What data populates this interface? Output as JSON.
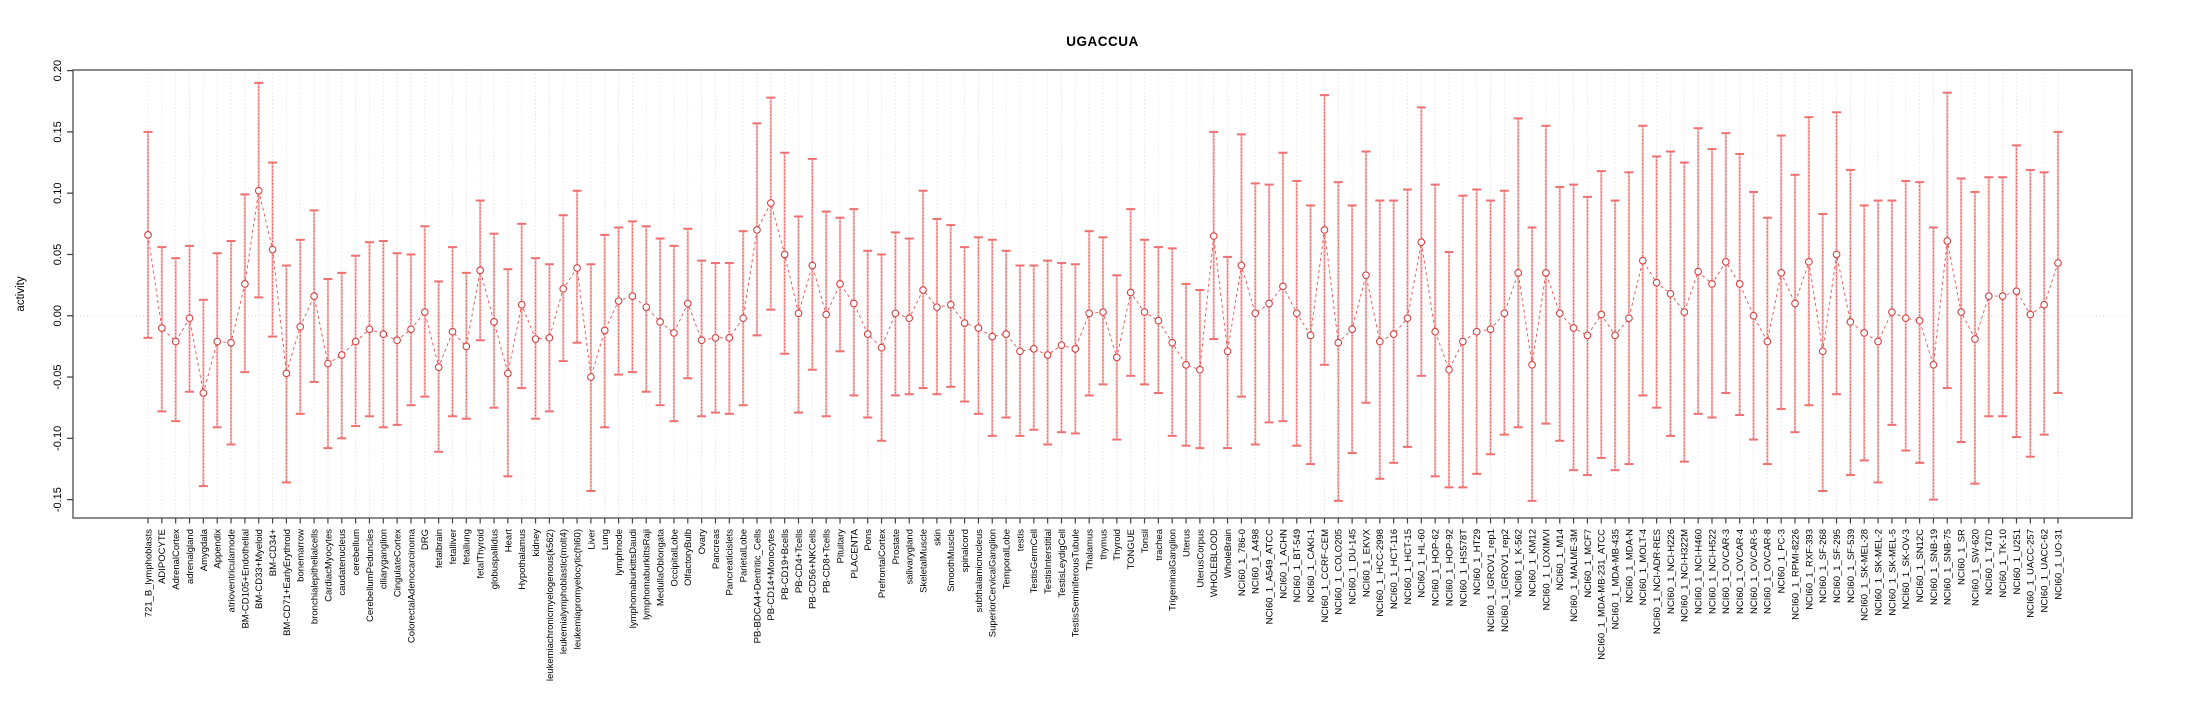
{
  "chart_data": {
    "type": "scatter",
    "subtype": "errorbar-ci-plot",
    "title": "UGACCUA",
    "xlabel": "",
    "ylabel": "activity",
    "ylim": [
      -0.165,
      0.2005
    ],
    "yticks": [
      0.2,
      0.15,
      0.1,
      0.05,
      0.0,
      -0.05,
      -0.1,
      -0.15
    ],
    "grid": "vertical dashed gridline per category; dotted horizontal line at y=0",
    "legend_position": "none",
    "marker": "open-circle",
    "line_style": "dashed connector between means",
    "colors": {
      "point_stroke": "#d94040",
      "bar_pale": "#f4a0a0",
      "bar_dash": "#dd4b4b",
      "cap": "#ee7070",
      "connector": "#e85151",
      "grid": "#e3e3e3",
      "zero_line": "#d8d8d8",
      "frame": "#6e6e6e",
      "tick": "#444444",
      "text": "#000000"
    },
    "categories": [
      "721_B_lymphoblasts",
      "ADIPOCYTE",
      "AdrenalCortex",
      "adrenalgland",
      "Amygdala",
      "Appendix",
      "atrioventricularnode",
      "BM-CD105+Endothelial",
      "BM-CD33+Myeloid",
      "BM-CD34+",
      "BM-CD71+EarlyErythroid",
      "bonemarrow",
      "bronchialepithelialcells",
      "CardiacMyocytes",
      "caudatenucleus",
      "cerebellum",
      "CerebellumPeduncles",
      "ciliaryganglion",
      "CingulateCortex",
      "ColorectalAdenocarcinoma",
      "DRG",
      "fetalbrain",
      "fetalliver",
      "fetallung",
      "fetalThyroid",
      "globuspallidus",
      "Heart",
      "Hypothalamus",
      "kidney",
      "leukemiachronicmyelogenous(k562)",
      "leukemialymphoblastic(molt4)",
      "leukemiapromyelocytic(hl60)",
      "Liver",
      "Lung",
      "lymphnode",
      "lymphomaburkittsDaudi",
      "lymphomaburkittsRaji",
      "MedullaOblongata",
      "OccipitalLobe",
      "OlfactoryBulb",
      "Ovary",
      "Pancreas",
      "Pancreaticislets",
      "ParietalLobe",
      "PB-BDCA4+Dentritic_Cells",
      "PB-CD14+Monocytes",
      "PB-CD19+Bcells",
      "PB-CD4+Tcells",
      "PB-CD56+NKCells",
      "PB-CD8+Tcells",
      "Pituitary",
      "PLACENTA",
      "Pons",
      "PrefrontalCortex",
      "Prostate",
      "salivarygland",
      "SkeletalMuscle",
      "skin",
      "SmoothMuscle",
      "spinalcord",
      "subthalamicnucleus",
      "SuperiorCervicalGanglion",
      "TemporalLobe",
      "testis",
      "TestisGermCell",
      "TestisInterstitial",
      "TestisLeydigCell",
      "TestisSeminiferousTubule",
      "Thalamus",
      "thymus",
      "Thyroid",
      "TONGUE",
      "Tonsil",
      "trachea",
      "TrigeminalGanglion",
      "Uterus",
      "UterusCorpus",
      "WHOLEBLOOD",
      "WholeBrain",
      "NCI60_1_786-0",
      "NCI60_1_A498",
      "NCI60_1_A549_ATCC",
      "NCI60_1_ACHN",
      "NCI60_1_BT-549",
      "NCI60_1_CAKI-1",
      "NCI60_1_CCRF-CEM",
      "NCI60_1_COLO205",
      "NCI60_1_DU-145",
      "NCI60_1_EKVX",
      "NCI60_1_HCC-2998",
      "NCI60_1_HCT-116",
      "NCI60_1_HCT-15",
      "NCI60_1_HL-60",
      "NCI60_1_HOP-62",
      "NCI60_1_HOP-92",
      "NCI60_1_HS578T",
      "NCI60_1_HT29",
      "NCI60_1_IGROV1_rep1",
      "NCI60_1_IGROV1_rep2",
      "NCI60_1_K-562",
      "NCI60_1_KM12",
      "NCI60_1_LOXIMVI",
      "NCI60_1_M14",
      "NCI60_1_MALME-3M",
      "NCI60_1_MCF7",
      "NCI60_1_MDA-MB-231_ATCC",
      "NCI60_1_MDA-MB-435",
      "NCI60_1_MDA-N",
      "NCI60_1_MOLT-4",
      "NCI60_1_NCI-ADR-RES",
      "NCI60_1_NCI-H226",
      "NCI60_1_NCI-H322M",
      "NCI60_1_NCI-H460",
      "NCI60_1_NCI-H522",
      "NCI60_1_OVCAR-3",
      "NCI60_1_OVCAR-4",
      "NCI60_1_OVCAR-5",
      "NCI60_1_OVCAR-8",
      "NCI60_1_PC-3",
      "NCI60_1_RPMI-8226",
      "NCI60_1_RXF-393",
      "NCI60_1_SF-268",
      "NCI60_1_SF-295",
      "NCI60_1_SF-539",
      "NCI60_1_SK-MEL-28",
      "NCI60_1_SK-MEL-2",
      "NCI60_1_SK-MEL-5",
      "NCI60_1_SK-OV-3",
      "NCI60_1_SN12C",
      "NCI60_1_SNB-19",
      "NCI60_1_SNB-75",
      "NCI60_1_SR",
      "NCI60_1_SW-620",
      "NCI60_1_T47D",
      "NCI60_1_TK-10",
      "NCI60_1_U251",
      "NCI60_1_UACC-257",
      "NCI60_1_UACC-62",
      "NCI60_1_UO-31"
    ],
    "series": [
      {
        "name": "activity",
        "means": [
          0.066,
          -0.01,
          -0.021,
          -0.002,
          -0.063,
          -0.021,
          -0.022,
          0.026,
          0.102,
          0.054,
          -0.047,
          -0.009,
          0.016,
          -0.039,
          -0.032,
          -0.021,
          -0.011,
          -0.015,
          -0.02,
          -0.011,
          0.003,
          -0.042,
          -0.013,
          -0.025,
          0.037,
          -0.005,
          -0.047,
          0.009,
          -0.019,
          -0.018,
          0.022,
          0.039,
          -0.05,
          -0.012,
          0.012,
          0.016,
          0.007,
          -0.005,
          -0.014,
          0.01,
          -0.02,
          -0.018,
          -0.018,
          -0.002,
          0.07,
          0.092,
          0.05,
          0.002,
          0.041,
          0.001,
          0.026,
          0.01,
          -0.015,
          -0.026,
          0.002,
          -0.002,
          0.021,
          0.007,
          0.009,
          -0.006,
          -0.01,
          -0.017,
          -0.015,
          -0.029,
          -0.027,
          -0.032,
          -0.024,
          -0.027,
          0.002,
          0.003,
          -0.034,
          0.019,
          0.003,
          -0.004,
          -0.022,
          -0.04,
          -0.044,
          0.065,
          -0.029,
          0.041,
          0.002,
          0.01,
          0.024,
          0.002,
          -0.016,
          0.07,
          -0.022,
          -0.011,
          0.033,
          -0.021,
          -0.015,
          -0.002,
          0.06,
          -0.013,
          -0.044,
          -0.021,
          -0.013,
          -0.011,
          0.002,
          0.035,
          -0.04,
          0.035,
          0.002,
          -0.01,
          -0.016,
          0.001,
          -0.016,
          -0.002,
          0.045,
          0.027,
          0.018,
          0.003,
          0.036,
          0.026,
          0.044,
          0.026,
          0.0,
          -0.021,
          0.035,
          0.01,
          0.044,
          -0.029,
          0.05,
          -0.005,
          -0.014,
          -0.021,
          0.003,
          -0.002,
          -0.004,
          -0.04,
          0.061,
          0.003,
          -0.019,
          0.016,
          0.016,
          0.02,
          0.001,
          0.009,
          0.043
        ],
        "lower": [
          -0.018,
          -0.078,
          -0.086,
          -0.062,
          -0.139,
          -0.091,
          -0.105,
          -0.046,
          0.015,
          -0.017,
          -0.136,
          -0.08,
          -0.054,
          -0.108,
          -0.1,
          -0.09,
          -0.082,
          -0.091,
          -0.089,
          -0.073,
          -0.066,
          -0.111,
          -0.082,
          -0.084,
          -0.02,
          -0.075,
          -0.131,
          -0.059,
          -0.084,
          -0.078,
          -0.037,
          -0.022,
          -0.143,
          -0.091,
          -0.048,
          -0.046,
          -0.062,
          -0.073,
          -0.086,
          -0.051,
          -0.082,
          -0.079,
          -0.08,
          -0.073,
          -0.016,
          0.005,
          -0.031,
          -0.079,
          -0.044,
          -0.082,
          -0.029,
          -0.065,
          -0.083,
          -0.102,
          -0.065,
          -0.064,
          -0.059,
          -0.064,
          -0.058,
          -0.07,
          -0.08,
          -0.098,
          -0.083,
          -0.098,
          -0.093,
          -0.105,
          -0.095,
          -0.096,
          -0.065,
          -0.056,
          -0.101,
          -0.049,
          -0.056,
          -0.063,
          -0.098,
          -0.106,
          -0.108,
          -0.019,
          -0.108,
          -0.066,
          -0.105,
          -0.087,
          -0.086,
          -0.106,
          -0.121,
          -0.04,
          -0.151,
          -0.112,
          -0.071,
          -0.133,
          -0.12,
          -0.107,
          -0.049,
          -0.131,
          -0.14,
          -0.14,
          -0.129,
          -0.113,
          -0.097,
          -0.091,
          -0.151,
          -0.088,
          -0.102,
          -0.126,
          -0.13,
          -0.116,
          -0.126,
          -0.121,
          -0.065,
          -0.075,
          -0.098,
          -0.119,
          -0.08,
          -0.083,
          -0.063,
          -0.081,
          -0.101,
          -0.121,
          -0.076,
          -0.095,
          -0.073,
          -0.143,
          -0.064,
          -0.13,
          -0.118,
          -0.136,
          -0.089,
          -0.11,
          -0.12,
          -0.15,
          -0.059,
          -0.103,
          -0.137,
          -0.082,
          -0.082,
          -0.099,
          -0.115,
          -0.097,
          -0.063
        ],
        "upper": [
          0.15,
          0.056,
          0.047,
          0.057,
          0.013,
          0.051,
          0.061,
          0.099,
          0.19,
          0.125,
          0.041,
          0.062,
          0.086,
          0.03,
          0.035,
          0.049,
          0.06,
          0.061,
          0.051,
          0.05,
          0.073,
          0.028,
          0.056,
          0.035,
          0.094,
          0.067,
          0.038,
          0.075,
          0.047,
          0.042,
          0.082,
          0.102,
          0.042,
          0.066,
          0.072,
          0.077,
          0.073,
          0.063,
          0.057,
          0.071,
          0.045,
          0.043,
          0.043,
          0.069,
          0.157,
          0.178,
          0.133,
          0.081,
          0.128,
          0.085,
          0.08,
          0.087,
          0.053,
          0.05,
          0.068,
          0.063,
          0.102,
          0.079,
          0.074,
          0.056,
          0.064,
          0.062,
          0.053,
          0.041,
          0.041,
          0.045,
          0.043,
          0.042,
          0.069,
          0.064,
          0.033,
          0.087,
          0.062,
          0.056,
          0.055,
          0.026,
          0.021,
          0.15,
          0.048,
          0.148,
          0.108,
          0.107,
          0.133,
          0.11,
          0.09,
          0.18,
          0.109,
          0.09,
          0.134,
          0.094,
          0.094,
          0.103,
          0.17,
          0.107,
          0.052,
          0.098,
          0.103,
          0.094,
          0.102,
          0.161,
          0.072,
          0.155,
          0.105,
          0.107,
          0.097,
          0.118,
          0.094,
          0.117,
          0.155,
          0.13,
          0.134,
          0.125,
          0.153,
          0.136,
          0.149,
          0.132,
          0.101,
          0.08,
          0.147,
          0.115,
          0.162,
          0.083,
          0.166,
          0.119,
          0.09,
          0.094,
          0.094,
          0.11,
          0.109,
          0.072,
          0.182,
          0.112,
          0.101,
          0.113,
          0.113,
          0.139,
          0.119,
          0.117,
          0.15
        ]
      }
    ]
  }
}
